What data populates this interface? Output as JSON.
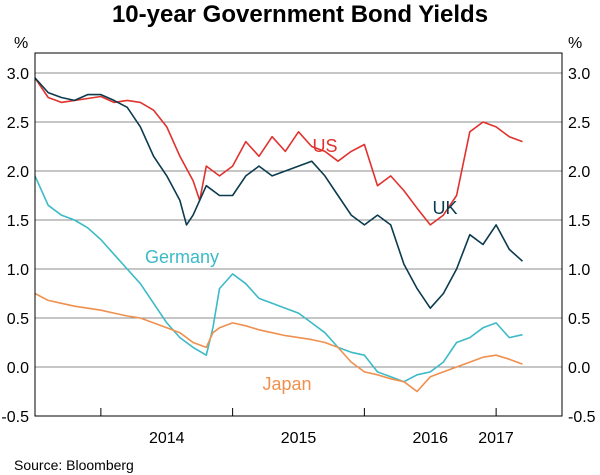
{
  "chart_data": {
    "type": "line",
    "title": "10-year Government Bond Yields",
    "ylabel_left": "%",
    "ylabel_right": "%",
    "ylim": [
      -0.5,
      3.0
    ],
    "yticks": [
      "3.0",
      "2.5",
      "2.0",
      "1.5",
      "1.0",
      "0.5",
      "0.0",
      "-0.5"
    ],
    "x_ticks": [
      "2014",
      "2015",
      "2016",
      "2017"
    ],
    "source": "Source:   Bloomberg",
    "series": [
      {
        "name": "US",
        "color": "#e0322e",
        "x": [
          2013.5,
          2013.6,
          2013.7,
          2013.8,
          2013.9,
          2014.0,
          2014.1,
          2014.2,
          2014.3,
          2014.4,
          2014.5,
          2014.6,
          2014.7,
          2014.75,
          2014.8,
          2014.9,
          2015.0,
          2015.1,
          2015.2,
          2015.3,
          2015.4,
          2015.5,
          2015.6,
          2015.7,
          2015.8,
          2015.9,
          2016.0,
          2016.1,
          2016.2,
          2016.3,
          2016.4,
          2016.5,
          2016.6,
          2016.7,
          2016.8,
          2016.9,
          2017.0,
          2017.1,
          2017.2
        ],
        "values": [
          2.95,
          2.75,
          2.7,
          2.72,
          2.74,
          2.76,
          2.7,
          2.72,
          2.7,
          2.62,
          2.45,
          2.15,
          1.9,
          1.7,
          2.05,
          1.95,
          2.05,
          2.3,
          2.15,
          2.35,
          2.2,
          2.4,
          2.25,
          2.2,
          2.1,
          2.2,
          2.27,
          1.85,
          1.95,
          1.8,
          1.62,
          1.45,
          1.55,
          1.75,
          2.4,
          2.5,
          2.45,
          2.35,
          2.3
        ]
      },
      {
        "name": "UK",
        "color": "#0b3b4f",
        "x": [
          2013.5,
          2013.6,
          2013.7,
          2013.8,
          2013.9,
          2014.0,
          2014.1,
          2014.2,
          2014.3,
          2014.4,
          2014.5,
          2014.6,
          2014.65,
          2014.7,
          2014.8,
          2014.9,
          2015.0,
          2015.1,
          2015.2,
          2015.3,
          2015.4,
          2015.5,
          2015.6,
          2015.7,
          2015.8,
          2015.9,
          2016.0,
          2016.1,
          2016.2,
          2016.3,
          2016.4,
          2016.5,
          2016.6,
          2016.7,
          2016.8,
          2016.9,
          2017.0,
          2017.1,
          2017.2
        ],
        "values": [
          2.95,
          2.8,
          2.75,
          2.72,
          2.78,
          2.78,
          2.72,
          2.65,
          2.45,
          2.15,
          1.95,
          1.7,
          1.45,
          1.55,
          1.85,
          1.75,
          1.75,
          1.95,
          2.05,
          1.95,
          2.0,
          2.05,
          2.1,
          1.95,
          1.75,
          1.55,
          1.45,
          1.55,
          1.45,
          1.05,
          0.8,
          0.6,
          0.75,
          1.0,
          1.35,
          1.25,
          1.45,
          1.2,
          1.08
        ]
      },
      {
        "name": "Germany",
        "color": "#3cbac6",
        "x": [
          2013.5,
          2013.6,
          2013.7,
          2013.8,
          2013.9,
          2014.0,
          2014.1,
          2014.2,
          2014.3,
          2014.4,
          2014.5,
          2014.6,
          2014.7,
          2014.8,
          2014.85,
          2014.9,
          2015.0,
          2015.1,
          2015.2,
          2015.3,
          2015.4,
          2015.5,
          2015.6,
          2015.7,
          2015.8,
          2015.9,
          2016.0,
          2016.1,
          2016.2,
          2016.3,
          2016.4,
          2016.5,
          2016.6,
          2016.7,
          2016.8,
          2016.9,
          2017.0,
          2017.1,
          2017.2
        ],
        "values": [
          1.95,
          1.65,
          1.55,
          1.5,
          1.42,
          1.3,
          1.15,
          1.0,
          0.85,
          0.65,
          0.45,
          0.3,
          0.2,
          0.12,
          0.4,
          0.8,
          0.95,
          0.85,
          0.7,
          0.65,
          0.6,
          0.55,
          0.45,
          0.35,
          0.2,
          0.15,
          0.12,
          -0.05,
          -0.1,
          -0.15,
          -0.08,
          -0.05,
          0.05,
          0.25,
          0.3,
          0.4,
          0.45,
          0.3,
          0.33
        ]
      },
      {
        "name": "Japan",
        "color": "#f0904e",
        "x": [
          2013.5,
          2013.6,
          2013.7,
          2013.8,
          2013.9,
          2014.0,
          2014.1,
          2014.2,
          2014.3,
          2014.4,
          2014.5,
          2014.6,
          2014.7,
          2014.8,
          2014.85,
          2014.9,
          2015.0,
          2015.1,
          2015.2,
          2015.3,
          2015.4,
          2015.5,
          2015.6,
          2015.7,
          2015.8,
          2015.9,
          2016.0,
          2016.1,
          2016.2,
          2016.3,
          2016.4,
          2016.5,
          2016.6,
          2016.7,
          2016.8,
          2016.9,
          2017.0,
          2017.1,
          2017.2
        ],
        "values": [
          0.75,
          0.68,
          0.65,
          0.62,
          0.6,
          0.58,
          0.55,
          0.52,
          0.5,
          0.45,
          0.4,
          0.35,
          0.25,
          0.2,
          0.35,
          0.4,
          0.45,
          0.42,
          0.38,
          0.35,
          0.32,
          0.3,
          0.28,
          0.25,
          0.2,
          0.05,
          -0.05,
          -0.08,
          -0.12,
          -0.15,
          -0.25,
          -0.1,
          -0.05,
          0.0,
          0.05,
          0.1,
          0.12,
          0.08,
          0.03
        ]
      }
    ]
  }
}
